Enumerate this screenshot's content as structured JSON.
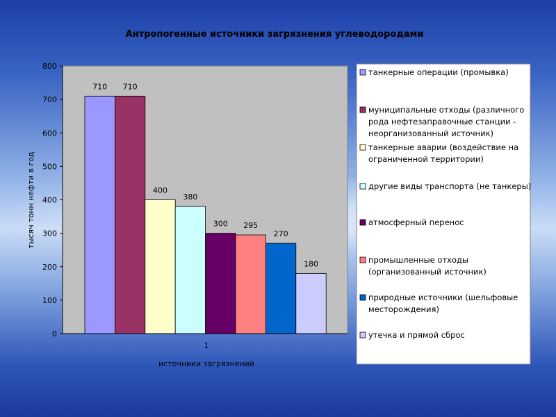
{
  "chart_data": {
    "type": "bar",
    "title": "Антропогенные источники загрязнения углеводородами",
    "xlabel": "источники загрязнений",
    "ylabel": "тысяч тонн нефти в год",
    "categories": [
      "1"
    ],
    "ylim": [
      0,
      800
    ],
    "yticks": [
      0,
      100,
      200,
      300,
      400,
      500,
      600,
      700,
      800
    ],
    "grid": false,
    "legend_position": "right",
    "series": [
      {
        "name": "танкерные операции (промывка)",
        "values": [
          710
        ],
        "color": "#9999ff"
      },
      {
        "name": "муниципальные отходы (различного рода нефтезаправочные станции - неорганизованный источник)",
        "values": [
          710
        ],
        "color": "#993366"
      },
      {
        "name": "танкерные аварии (воздействие на ограниченной территории)",
        "values": [
          400
        ],
        "color": "#ffffcc"
      },
      {
        "name": "другие виды транспорта (не танкеры)",
        "values": [
          380
        ],
        "color": "#ccffff"
      },
      {
        "name": "атмосферный перенос",
        "values": [
          300
        ],
        "color": "#660066"
      },
      {
        "name": "промышленные отходы (организованный источник)",
        "values": [
          295
        ],
        "color": "#ff8080"
      },
      {
        "name": "природные источники (шельфовые месторождения)",
        "values": [
          270
        ],
        "color": "#0066cc"
      },
      {
        "name": "утечка и прямой сброс",
        "values": [
          180
        ],
        "color": "#ccccff"
      }
    ]
  }
}
